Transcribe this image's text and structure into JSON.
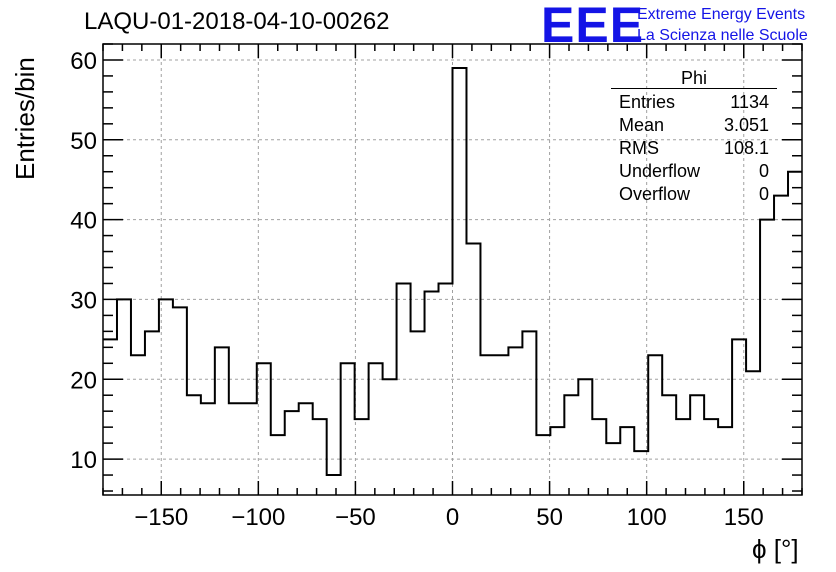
{
  "header": {
    "title": "LAQU-01-2018-04-10-00262",
    "logo_mark": "EEE",
    "logo_line1": "Extreme Energy Events",
    "logo_line2": "La Scienza nelle Scuole"
  },
  "stats_box": {
    "name": "Phi",
    "rows": [
      {
        "label": "Entries",
        "value": "1134"
      },
      {
        "label": "Mean",
        "value": "3.051"
      },
      {
        "label": "RMS",
        "value": "108.1"
      },
      {
        "label": "Underflow",
        "value": "0"
      },
      {
        "label": "Overflow",
        "value": "0"
      }
    ]
  },
  "chart_data": {
    "type": "bar",
    "histogram": true,
    "title": "LAQU-01-2018-04-10-00262",
    "xlabel": "ϕ [°]",
    "ylabel": "Entries/bin",
    "xlim": [
      -180,
      180
    ],
    "ylim": [
      5.5,
      62
    ],
    "bin_width": 7.2,
    "bin_edges_start": -180,
    "values": [
      25,
      30,
      23,
      26,
      30,
      29,
      18,
      17,
      24,
      17,
      17,
      22,
      13,
      16,
      17,
      15,
      8,
      22,
      15,
      22,
      20,
      32,
      26,
      31,
      32,
      59,
      37,
      23,
      23,
      24,
      26,
      13,
      14,
      18,
      20,
      15,
      12,
      14,
      11,
      23,
      18,
      15,
      18,
      15,
      14,
      25,
      21,
      40,
      43,
      46
    ],
    "x_ticks": [
      -150,
      -100,
      -50,
      0,
      50,
      100,
      150
    ],
    "x_tick_labels": [
      "−150",
      "−100",
      "−50",
      "0",
      "50",
      "100",
      "150"
    ],
    "y_ticks": [
      10,
      20,
      30,
      40,
      50,
      60
    ],
    "y_tick_labels": [
      "10",
      "20",
      "30",
      "40",
      "50",
      "60"
    ],
    "grid": true,
    "line_color": "#000000",
    "grid_color": "#a0a0a0"
  }
}
